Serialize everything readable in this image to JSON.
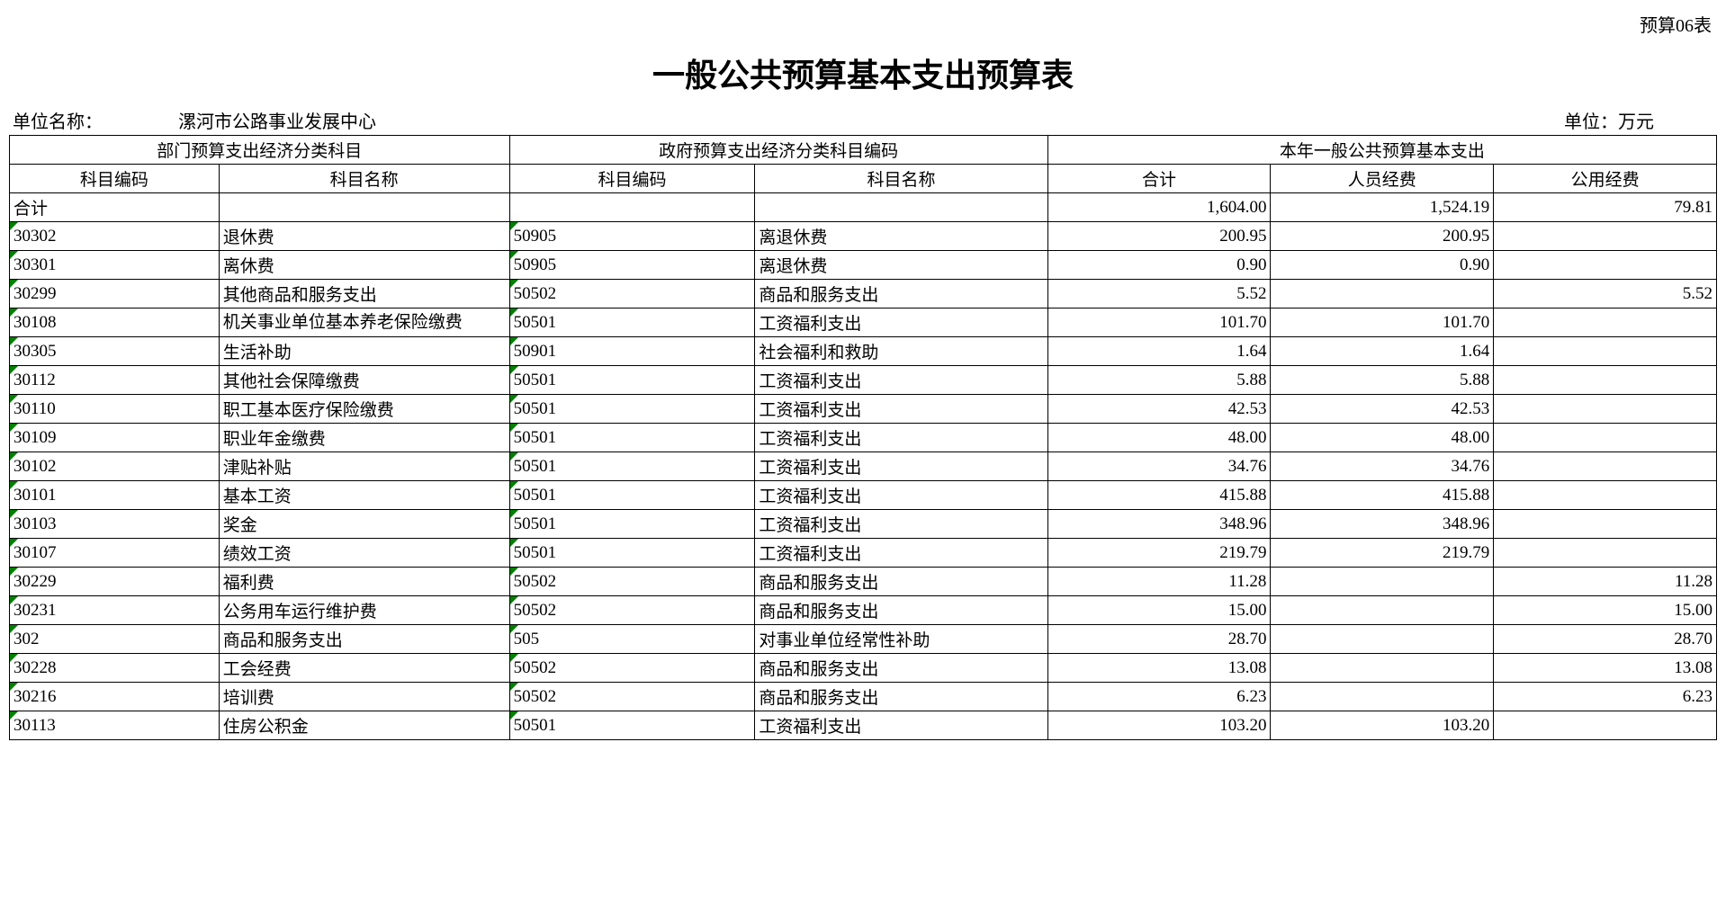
{
  "form_id": "预算06表",
  "title": "一般公共预算基本支出预算表",
  "org_label": "单位名称：",
  "org_name": "漯河市公路事业发展中心",
  "unit_label": "单位：万元",
  "header": {
    "group1": "部门预算支出经济分类科目",
    "group2": "政府预算支出经济分类科目编码",
    "group3": "本年一般公共预算基本支出",
    "c1": "科目编码",
    "c2": "科目名称",
    "c3": "科目编码",
    "c4": "科目名称",
    "c5": "合计",
    "c6": "人员经费",
    "c7": "公用经费"
  },
  "total_row": {
    "label": "合计",
    "c5": "1,604.00",
    "c6": "1,524.19",
    "c7": "79.81"
  },
  "rows": [
    {
      "c1": "30302",
      "c2": "退休费",
      "c3": "50905",
      "c4": "离退休费",
      "c5": "200.95",
      "c6": "200.95",
      "c7": ""
    },
    {
      "c1": "30301",
      "c2": "离休费",
      "c3": "50905",
      "c4": "离退休费",
      "c5": "0.90",
      "c6": "0.90",
      "c7": ""
    },
    {
      "c1": "30299",
      "c2": "其他商品和服务支出",
      "c3": "50502",
      "c4": "商品和服务支出",
      "c5": "5.52",
      "c6": "",
      "c7": "5.52"
    },
    {
      "c1": "30108",
      "c2": "机关事业单位基本养老保险缴费",
      "c3": "50501",
      "c4": "工资福利支出",
      "c5": "101.70",
      "c6": "101.70",
      "c7": "",
      "wrap": true
    },
    {
      "c1": "30305",
      "c2": "生活补助",
      "c3": "50901",
      "c4": "社会福利和救助",
      "c5": "1.64",
      "c6": "1.64",
      "c7": ""
    },
    {
      "c1": "30112",
      "c2": "其他社会保障缴费",
      "c3": "50501",
      "c4": "工资福利支出",
      "c5": "5.88",
      "c6": "5.88",
      "c7": ""
    },
    {
      "c1": "30110",
      "c2": "职工基本医疗保险缴费",
      "c3": "50501",
      "c4": "工资福利支出",
      "c5": "42.53",
      "c6": "42.53",
      "c7": ""
    },
    {
      "c1": "30109",
      "c2": "职业年金缴费",
      "c3": "50501",
      "c4": "工资福利支出",
      "c5": "48.00",
      "c6": "48.00",
      "c7": ""
    },
    {
      "c1": "30102",
      "c2": "津贴补贴",
      "c3": "50501",
      "c4": "工资福利支出",
      "c5": "34.76",
      "c6": "34.76",
      "c7": ""
    },
    {
      "c1": "30101",
      "c2": "基本工资",
      "c3": "50501",
      "c4": "工资福利支出",
      "c5": "415.88",
      "c6": "415.88",
      "c7": ""
    },
    {
      "c1": "30103",
      "c2": "奖金",
      "c3": "50501",
      "c4": "工资福利支出",
      "c5": "348.96",
      "c6": "348.96",
      "c7": ""
    },
    {
      "c1": "30107",
      "c2": "绩效工资",
      "c3": "50501",
      "c4": "工资福利支出",
      "c5": "219.79",
      "c6": "219.79",
      "c7": ""
    },
    {
      "c1": "30229",
      "c2": "福利费",
      "c3": "50502",
      "c4": "商品和服务支出",
      "c5": "11.28",
      "c6": "",
      "c7": "11.28"
    },
    {
      "c1": "30231",
      "c2": "公务用车运行维护费",
      "c3": "50502",
      "c4": "商品和服务支出",
      "c5": "15.00",
      "c6": "",
      "c7": "15.00"
    },
    {
      "c1": "302",
      "c2": "商品和服务支出",
      "c3": "505",
      "c4": "对事业单位经常性补助",
      "c5": "28.70",
      "c6": "",
      "c7": "28.70"
    },
    {
      "c1": "30228",
      "c2": "工会经费",
      "c3": "50502",
      "c4": "商品和服务支出",
      "c5": "13.08",
      "c6": "",
      "c7": "13.08"
    },
    {
      "c1": "30216",
      "c2": "培训费",
      "c3": "50502",
      "c4": "商品和服务支出",
      "c5": "6.23",
      "c6": "",
      "c7": "6.23"
    },
    {
      "c1": "30113",
      "c2": "住房公积金",
      "c3": "50501",
      "c4": "工资福利支出",
      "c5": "103.20",
      "c6": "103.20",
      "c7": ""
    }
  ],
  "style": {
    "marker_color": "#008000",
    "border_color": "#000000",
    "bg_color": "#ffffff",
    "text_color": "#000000",
    "title_fontsize": 36,
    "body_fontsize": 19
  }
}
